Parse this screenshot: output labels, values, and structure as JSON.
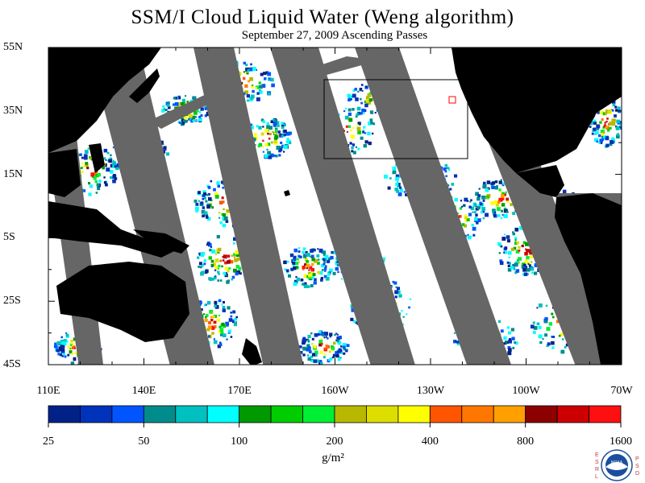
{
  "title": "SSM/I Cloud Liquid Water (Weng algorithm)",
  "subtitle": "September 27, 2009  Ascending Passes",
  "lat_labels": [
    "55N",
    "35N",
    "15N",
    "5S",
    "25S",
    "45S"
  ],
  "lon_labels": [
    "110E",
    "140E",
    "170E",
    "160W",
    "130W",
    "100W",
    "70W"
  ],
  "colorbar": {
    "labels": [
      "25",
      "50",
      "100",
      "200",
      "400",
      "800",
      "1600"
    ],
    "colors": [
      "#002288",
      "#0033bb",
      "#0055ff",
      "#008c8c",
      "#00c0c0",
      "#00ffff",
      "#009900",
      "#00cc00",
      "#00ee33",
      "#b8b800",
      "#dddd00",
      "#ffff00",
      "#ff5500",
      "#ff7700",
      "#ffa000",
      "#8c0000",
      "#cc0000",
      "#ff1010"
    ],
    "unit": "g/m²"
  },
  "map": {
    "extent_lon": [
      110,
      290
    ],
    "extent_lat": [
      -45,
      55
    ],
    "land_color": "#000000",
    "swath_gap_color": "#666666",
    "ocean_color": "#ffffff"
  },
  "logo_text": {
    "left": "ESRL",
    "right": "PSD",
    "center": "NOAA"
  }
}
